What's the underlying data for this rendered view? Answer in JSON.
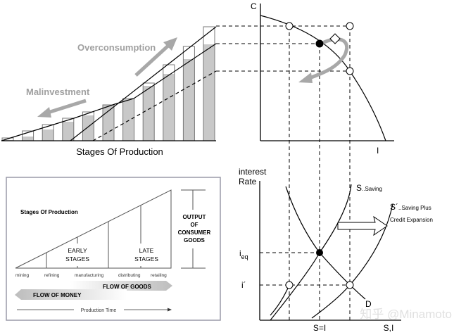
{
  "bar_panel": {
    "xlabel": "Stages Of Production",
    "overconsumption_label": "Overconsumption",
    "malinvestment_label": "Malinvestment",
    "label_color": "#a0a0a0",
    "bar_fill": "#c8c8c8"
  },
  "ppf_panel": {
    "y_axis_label": "C",
    "x_axis_label": "I"
  },
  "stages_box": {
    "title": "Stages Of Production",
    "stages": [
      "mining",
      "refining",
      "manufacturing",
      "distributing",
      "retailing"
    ],
    "early_label_line1": "EARLY",
    "early_label_line2": "STAGES",
    "late_label_line1": "LATE",
    "late_label_line2": "STAGES",
    "output_line1": "OUTPUT",
    "output_line2": "OF",
    "output_line3": "CONSUMER",
    "output_line4": "GOODS",
    "flow_goods": "FLOW OF GOODS",
    "flow_money": "FLOW OF MONEY",
    "production_time": "Production Time"
  },
  "loanable_funds_panel": {
    "y_axis_label_line1": "interest",
    "y_axis_label_line2": "Rate",
    "saving_curve_label_main": "S",
    "saving_curve_label_sub": "..Saving",
    "credit_curve_label_main": "S´",
    "credit_curve_label_sub": "..Saving Plus",
    "credit_curve_label_line2": "Credit Expansion",
    "demand_label": "D",
    "i_eq_main": "i",
    "i_eq_sub": "eq",
    "i_prime": "i´",
    "x_tick_label": "S=I",
    "x_axis_label": "S,I"
  },
  "watermark": "知乎 @Minamoto"
}
